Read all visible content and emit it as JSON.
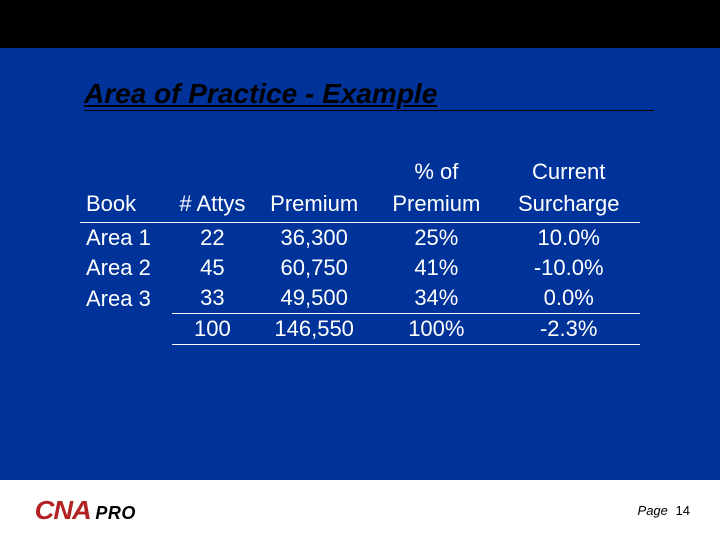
{
  "slide": {
    "title": "Area of Practice - Example",
    "background_color": "#003399",
    "title_color": "#000000",
    "title_fontsize": 28
  },
  "table": {
    "type": "table",
    "text_color": "#ffffff",
    "rule_color": "#ffffff",
    "fontsize": 22,
    "columns": [
      {
        "key": "book",
        "label_l1": "",
        "label_l2": "Book",
        "align": "left"
      },
      {
        "key": "attys",
        "label_l1": "",
        "label_l2": "# Attys",
        "align": "center"
      },
      {
        "key": "premium",
        "label_l1": "",
        "label_l2": "Premium",
        "align": "center"
      },
      {
        "key": "pct",
        "label_l1": "% of",
        "label_l2": "Premium",
        "align": "center"
      },
      {
        "key": "sur",
        "label_l1": "Current",
        "label_l2": "Surcharge",
        "align": "center"
      }
    ],
    "rows": [
      {
        "book": "Area 1",
        "attys": "22",
        "premium": "36,300",
        "pct": "25%",
        "sur": "10.0%"
      },
      {
        "book": "Area 2",
        "attys": "45",
        "premium": "60,750",
        "pct": "41%",
        "sur": "-10.0%"
      },
      {
        "book": "Area 3",
        "attys": "33",
        "premium": "49,500",
        "pct": "34%",
        "sur": "0.0%"
      }
    ],
    "totals": {
      "book": "",
      "attys": "100",
      "premium": "146,550",
      "pct": "100%",
      "sur": "-2.3%"
    }
  },
  "footer": {
    "logo_cna": "CNA",
    "logo_pro": "PRO",
    "logo_cna_color": "#b22222",
    "logo_pro_color": "#000000",
    "page_label": "Page",
    "page_number": "14"
  }
}
